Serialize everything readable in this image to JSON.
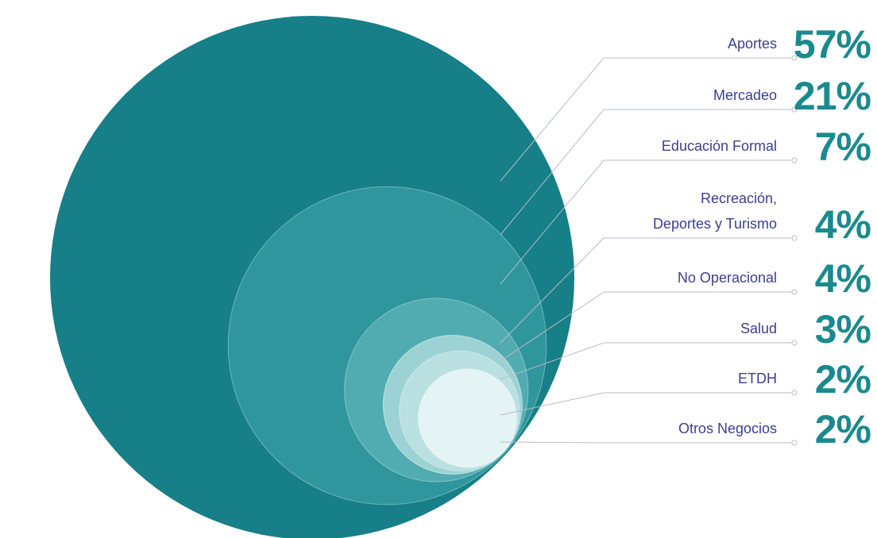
{
  "chart_data": {
    "type": "nested-circles",
    "categories": [
      "Aportes",
      "Mercadeo",
      "Educación Formal",
      "Recreación,\nDeportes y Turismo",
      "No Operacional",
      "Salud",
      "ETDH",
      "Otros Negocios"
    ],
    "values": [
      57,
      21,
      7,
      4,
      4,
      3,
      2,
      2
    ],
    "value_labels": [
      "57%",
      "21%",
      "7%",
      "4%",
      "4%",
      "3%",
      "2%",
      "2%"
    ],
    "colors": [
      "#167f87",
      "#3a9ea5",
      "#5cb3b7",
      "#86c7c9",
      "#a9d8d9",
      "#c5e4e5",
      "#d9eeee",
      "#eaf5f5"
    ]
  }
}
